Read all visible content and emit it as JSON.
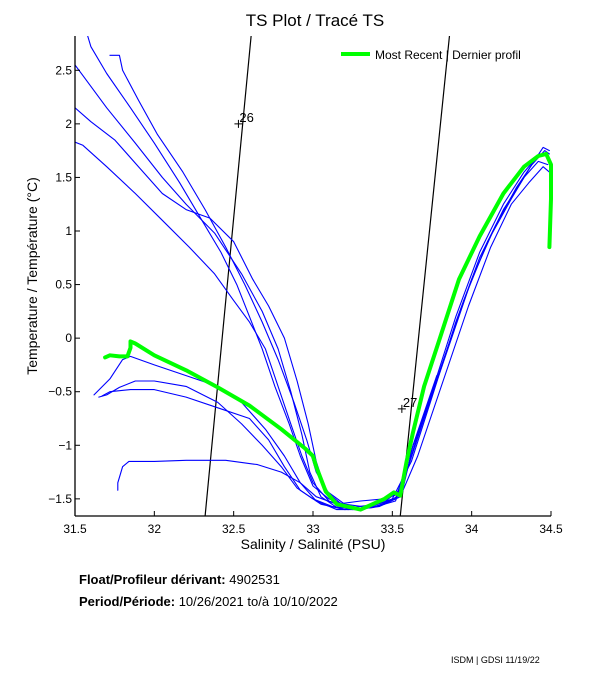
{
  "chart_data": {
    "type": "line",
    "title": "TS Plot / Tracé TS",
    "xlabel": "Salinity / Salinité (PSU)",
    "ylabel": "Temperature / Température (°C)",
    "xlim": [
      31.5,
      34.5
    ],
    "ylim": [
      -1.66,
      2.82
    ],
    "xticks": [
      31.5,
      32,
      32.5,
      33,
      33.5,
      34,
      34.5
    ],
    "xtick_labels": [
      "31.5",
      "32",
      "32.5",
      "33",
      "33.5",
      "34",
      "34.5"
    ],
    "yticks": [
      -1.5,
      -1,
      -0.5,
      0,
      0.5,
      1,
      1.5,
      2,
      2.5
    ],
    "ytick_labels": [
      "-1.5",
      "-1",
      "-0.5",
      "0",
      "0.5",
      "1",
      "1.5",
      "2",
      "2.5"
    ],
    "grid": false,
    "legend": {
      "position": "top-right",
      "entries": [
        "Most Recent | Dernier profil"
      ]
    },
    "colors": {
      "historical": "#0000ff",
      "recent": "#00ff00",
      "isopycnal": "#000000"
    },
    "isopycnals": [
      {
        "label": "26",
        "points": [
          [
            32.61,
            2.82
          ],
          [
            32.32,
            -1.66
          ]
        ],
        "label_at": [
          32.53,
          2.0
        ]
      },
      {
        "label": "27",
        "points": [
          [
            33.86,
            2.82
          ],
          [
            33.55,
            -1.66
          ]
        ],
        "label_at": [
          33.56,
          -0.66
        ]
      }
    ],
    "series": [
      {
        "name": "Historical profile 1",
        "role": "historical",
        "points": [
          [
            31.58,
            2.82
          ],
          [
            31.6,
            2.72
          ],
          [
            31.7,
            2.47
          ],
          [
            31.85,
            2.15
          ],
          [
            32.0,
            1.82
          ],
          [
            32.16,
            1.45
          ],
          [
            32.3,
            1.1
          ],
          [
            32.42,
            0.8
          ],
          [
            32.52,
            0.5
          ],
          [
            32.6,
            0.2
          ],
          [
            32.68,
            -0.1
          ],
          [
            32.76,
            -0.45
          ],
          [
            32.85,
            -0.8
          ],
          [
            32.92,
            -1.1
          ],
          [
            33.0,
            -1.38
          ],
          [
            33.1,
            -1.5
          ],
          [
            33.25,
            -1.58
          ],
          [
            33.4,
            -1.55
          ],
          [
            33.52,
            -1.5
          ],
          [
            33.62,
            -1.05
          ],
          [
            33.75,
            -0.5
          ],
          [
            33.9,
            0.2
          ],
          [
            34.05,
            0.8
          ],
          [
            34.2,
            1.25
          ],
          [
            34.33,
            1.55
          ],
          [
            34.43,
            1.72
          ],
          [
            34.48,
            1.7
          ]
        ]
      },
      {
        "name": "Historical profile 2",
        "role": "historical",
        "points": [
          [
            31.72,
            2.64
          ],
          [
            31.78,
            2.64
          ],
          [
            31.8,
            2.5
          ],
          [
            31.9,
            2.22
          ],
          [
            32.02,
            1.9
          ],
          [
            32.18,
            1.55
          ],
          [
            32.32,
            1.2
          ],
          [
            32.45,
            0.85
          ],
          [
            32.57,
            0.5
          ],
          [
            32.68,
            0.15
          ],
          [
            32.78,
            -0.2
          ],
          [
            32.88,
            -0.6
          ],
          [
            32.96,
            -0.95
          ],
          [
            33.02,
            -1.25
          ],
          [
            33.1,
            -1.45
          ],
          [
            33.22,
            -1.6
          ],
          [
            33.38,
            -1.58
          ],
          [
            33.52,
            -1.52
          ],
          [
            33.6,
            -1.2
          ],
          [
            33.7,
            -0.75
          ],
          [
            33.85,
            -0.1
          ],
          [
            34.0,
            0.55
          ],
          [
            34.15,
            1.05
          ],
          [
            34.28,
            1.4
          ],
          [
            34.38,
            1.62
          ],
          [
            34.46,
            1.75
          ],
          [
            34.49,
            1.72
          ]
        ]
      },
      {
        "name": "Historical profile 3",
        "role": "historical",
        "points": [
          [
            31.5,
            2.55
          ],
          [
            31.55,
            2.45
          ],
          [
            31.7,
            2.15
          ],
          [
            31.88,
            1.82
          ],
          [
            32.05,
            1.5
          ],
          [
            32.2,
            1.25
          ],
          [
            32.38,
            0.98
          ],
          [
            32.55,
            0.6
          ],
          [
            32.68,
            0.25
          ],
          [
            32.78,
            -0.1
          ],
          [
            32.86,
            -0.5
          ],
          [
            32.93,
            -0.9
          ],
          [
            32.98,
            -1.25
          ],
          [
            33.05,
            -1.48
          ],
          [
            33.15,
            -1.58
          ],
          [
            33.3,
            -1.6
          ],
          [
            33.45,
            -1.53
          ],
          [
            33.56,
            -1.4
          ],
          [
            33.65,
            -0.95
          ],
          [
            33.8,
            -0.3
          ],
          [
            33.95,
            0.35
          ],
          [
            34.1,
            0.9
          ],
          [
            34.25,
            1.3
          ],
          [
            34.37,
            1.6
          ],
          [
            34.45,
            1.78
          ],
          [
            34.49,
            1.75
          ]
        ]
      },
      {
        "name": "Historical profile 4",
        "role": "historical",
        "points": [
          [
            31.5,
            2.15
          ],
          [
            31.6,
            2.02
          ],
          [
            31.75,
            1.85
          ],
          [
            31.9,
            1.6
          ],
          [
            32.05,
            1.35
          ],
          [
            32.2,
            1.2
          ],
          [
            32.35,
            1.12
          ],
          [
            32.5,
            0.9
          ],
          [
            32.62,
            0.55
          ],
          [
            32.72,
            0.3
          ],
          [
            32.82,
            0.0
          ],
          [
            32.9,
            -0.4
          ],
          [
            32.97,
            -0.8
          ],
          [
            33.02,
            -1.15
          ],
          [
            33.08,
            -1.42
          ],
          [
            33.2,
            -1.55
          ],
          [
            33.35,
            -1.58
          ],
          [
            33.5,
            -1.5
          ],
          [
            33.62,
            -1.15
          ],
          [
            33.75,
            -0.55
          ],
          [
            33.9,
            0.15
          ],
          [
            34.05,
            0.75
          ],
          [
            34.2,
            1.2
          ],
          [
            34.33,
            1.5
          ],
          [
            34.42,
            1.65
          ],
          [
            34.48,
            1.62
          ]
        ]
      },
      {
        "name": "Historical profile 5",
        "role": "historical",
        "points": [
          [
            31.5,
            1.83
          ],
          [
            31.55,
            1.8
          ],
          [
            31.7,
            1.6
          ],
          [
            31.88,
            1.35
          ],
          [
            32.05,
            1.1
          ],
          [
            32.22,
            0.85
          ],
          [
            32.38,
            0.6
          ],
          [
            32.5,
            0.35
          ],
          [
            32.6,
            0.15
          ],
          [
            32.7,
            -0.1
          ],
          [
            32.78,
            -0.45
          ],
          [
            32.86,
            -0.8
          ],
          [
            32.93,
            -1.1
          ],
          [
            33.0,
            -1.35
          ],
          [
            33.1,
            -1.52
          ],
          [
            33.25,
            -1.6
          ],
          [
            33.4,
            -1.57
          ],
          [
            33.55,
            -1.48
          ],
          [
            33.66,
            -1.1
          ],
          [
            33.82,
            -0.4
          ],
          [
            33.98,
            0.3
          ],
          [
            34.12,
            0.85
          ],
          [
            34.25,
            1.25
          ],
          [
            34.36,
            1.45
          ],
          [
            34.45,
            1.6
          ],
          [
            34.49,
            1.55
          ]
        ]
      },
      {
        "name": "Historical profile 6",
        "role": "historical",
        "points": [
          [
            31.62,
            -0.53
          ],
          [
            31.72,
            -0.38
          ],
          [
            31.8,
            -0.2
          ],
          [
            31.85,
            -0.17
          ],
          [
            32.0,
            -0.25
          ],
          [
            32.2,
            -0.35
          ],
          [
            32.4,
            -0.45
          ],
          [
            32.55,
            -0.6
          ],
          [
            32.7,
            -0.85
          ],
          [
            32.82,
            -1.1
          ],
          [
            32.92,
            -1.35
          ],
          [
            33.02,
            -1.52
          ],
          [
            33.15,
            -1.6
          ],
          [
            33.3,
            -1.6
          ],
          [
            33.45,
            -1.55
          ],
          [
            33.56,
            -1.45
          ],
          [
            33.63,
            -1.0
          ],
          [
            33.78,
            -0.35
          ]
        ]
      },
      {
        "name": "Historical profile 7",
        "role": "historical",
        "points": [
          [
            31.65,
            -0.55
          ],
          [
            31.7,
            -0.53
          ],
          [
            31.78,
            -0.46
          ],
          [
            31.88,
            -0.4
          ],
          [
            32.0,
            -0.4
          ],
          [
            32.2,
            -0.45
          ],
          [
            32.4,
            -0.6
          ],
          [
            32.55,
            -0.8
          ],
          [
            32.68,
            -1.0
          ],
          [
            32.8,
            -1.2
          ],
          [
            32.9,
            -1.4
          ],
          [
            33.0,
            -1.5
          ],
          [
            33.12,
            -1.57
          ],
          [
            33.28,
            -1.6
          ],
          [
            33.42,
            -1.57
          ],
          [
            33.55,
            -1.48
          ]
        ]
      },
      {
        "name": "Historical profile 8",
        "role": "historical",
        "points": [
          [
            31.67,
            -0.54
          ],
          [
            31.72,
            -0.5
          ],
          [
            31.85,
            -0.48
          ],
          [
            32.0,
            -0.48
          ],
          [
            32.2,
            -0.55
          ],
          [
            32.4,
            -0.65
          ],
          [
            32.6,
            -0.75
          ],
          [
            32.72,
            -0.95
          ],
          [
            32.82,
            -1.2
          ],
          [
            32.92,
            -1.42
          ],
          [
            33.05,
            -1.55
          ],
          [
            33.2,
            -1.6
          ],
          [
            33.38,
            -1.58
          ],
          [
            33.52,
            -1.5
          ]
        ]
      },
      {
        "name": "Historical profile 9",
        "role": "historical",
        "points": [
          [
            31.77,
            -1.42
          ],
          [
            31.77,
            -1.35
          ],
          [
            31.8,
            -1.2
          ],
          [
            31.84,
            -1.15
          ],
          [
            32.0,
            -1.15
          ],
          [
            32.2,
            -1.14
          ],
          [
            32.45,
            -1.14
          ],
          [
            32.65,
            -1.18
          ],
          [
            32.8,
            -1.25
          ],
          [
            32.92,
            -1.35
          ],
          [
            33.02,
            -1.48
          ],
          [
            33.15,
            -1.55
          ],
          [
            33.3,
            -1.52
          ],
          [
            33.45,
            -1.5
          ],
          [
            33.55,
            -1.45
          ]
        ]
      },
      {
        "name": "Most Recent | Dernier profil",
        "role": "recent",
        "points": [
          [
            31.69,
            -0.18
          ],
          [
            31.72,
            -0.16
          ],
          [
            31.78,
            -0.17
          ],
          [
            31.83,
            -0.17
          ],
          [
            31.85,
            -0.09
          ],
          [
            31.85,
            -0.03
          ],
          [
            31.88,
            -0.05
          ],
          [
            32.0,
            -0.16
          ],
          [
            32.2,
            -0.3
          ],
          [
            32.4,
            -0.46
          ],
          [
            32.6,
            -0.63
          ],
          [
            32.8,
            -0.85
          ],
          [
            32.95,
            -1.03
          ],
          [
            33.0,
            -1.1
          ],
          [
            33.02,
            -1.2
          ],
          [
            33.08,
            -1.43
          ],
          [
            33.15,
            -1.55
          ],
          [
            33.3,
            -1.6
          ],
          [
            33.45,
            -1.5
          ],
          [
            33.51,
            -1.44
          ],
          [
            33.55,
            -1.47
          ],
          [
            33.59,
            -1.15
          ],
          [
            33.63,
            -0.88
          ],
          [
            33.7,
            -0.45
          ],
          [
            33.8,
            0.0
          ],
          [
            33.92,
            0.55
          ],
          [
            34.05,
            0.95
          ],
          [
            34.2,
            1.35
          ],
          [
            34.33,
            1.6
          ],
          [
            34.42,
            1.7
          ],
          [
            34.47,
            1.72
          ],
          [
            34.5,
            1.62
          ],
          [
            34.5,
            1.3
          ],
          [
            34.49,
            0.85
          ]
        ]
      }
    ]
  },
  "info": {
    "float_label": "Float/Profileur dérivant:",
    "float_value": "4902531",
    "period_label": "Period/Période:",
    "period_start": "10/26/2021",
    "period_sep": "to/à",
    "period_end": "10/10/2022"
  },
  "credit": "ISDM | GDSI  11/19/22"
}
